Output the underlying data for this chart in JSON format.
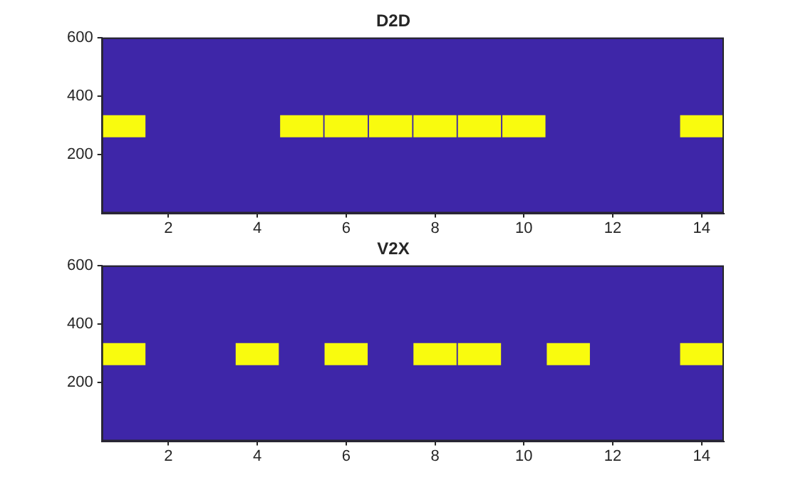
{
  "chart_data": [
    {
      "type": "bar",
      "title": "D2D",
      "x": [
        1,
        2,
        3,
        4,
        5,
        6,
        7,
        8,
        9,
        10,
        11,
        12,
        13,
        14
      ],
      "series": [
        {
          "color": "#f9fb0e",
          "base": [
            260,
            null,
            null,
            null,
            260,
            260,
            260,
            260,
            260,
            260,
            null,
            null,
            null,
            260
          ],
          "values": [
            75,
            null,
            null,
            null,
            75,
            75,
            75,
            75,
            75,
            75,
            null,
            null,
            null,
            75
          ]
        }
      ],
      "xlim": [
        0.5,
        14.5
      ],
      "xticks": [
        2,
        4,
        6,
        8,
        10,
        12,
        14
      ],
      "ylim": [
        0,
        600
      ],
      "yticks": [
        200,
        400,
        600
      ],
      "grid": false,
      "legend": false
    },
    {
      "type": "bar",
      "title": "V2X",
      "x": [
        1,
        2,
        3,
        4,
        5,
        6,
        7,
        8,
        9,
        10,
        11,
        12,
        13,
        14
      ],
      "series": [
        {
          "color": "#f9fb0e",
          "base": [
            260,
            null,
            null,
            260,
            null,
            260,
            null,
            260,
            260,
            null,
            260,
            null,
            null,
            260
          ],
          "values": [
            75,
            null,
            null,
            75,
            null,
            75,
            null,
            75,
            75,
            null,
            75,
            null,
            null,
            75
          ]
        }
      ],
      "xlim": [
        0.5,
        14.5
      ],
      "xticks": [
        2,
        4,
        6,
        8,
        10,
        12,
        14
      ],
      "ylim": [
        0,
        600
      ],
      "yticks": [
        200,
        400,
        600
      ],
      "grid": false,
      "legend": false
    }
  ]
}
